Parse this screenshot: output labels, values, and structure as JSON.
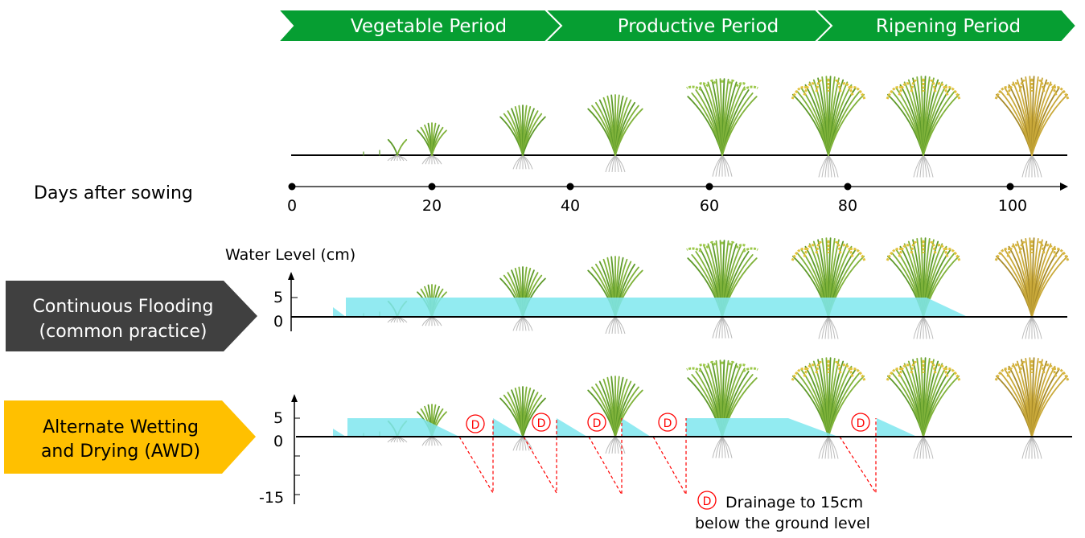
{
  "periods": [
    {
      "label": "Vegetable Period"
    },
    {
      "label": "Productive Period"
    },
    {
      "label": "Ripening Period"
    }
  ],
  "colors": {
    "period": "#069e32",
    "flooding_label": "#404040",
    "awd_label": "#ffc000",
    "water": "#7fe7ef",
    "drain": "#ff0000"
  },
  "timeline": {
    "label": "Days after sowing",
    "ticks": [
      "0",
      "20",
      "40",
      "60",
      "80",
      "100"
    ]
  },
  "water_axis": {
    "label": "Water Level (cm)"
  },
  "flooding": {
    "line1": "Continuous Flooding",
    "line2": "(common practice)",
    "ticks": [
      "5",
      "0"
    ]
  },
  "awd": {
    "line1": "Alternate Wetting",
    "line2": "and Drying (AWD)",
    "ticks": [
      "5",
      "0",
      "-15"
    ],
    "marker": "D"
  },
  "legend": {
    "marker": "D",
    "line1": "Drainage to 15cm",
    "line2": "below the ground level"
  },
  "plant_icons": [
    "seedling",
    "seedling",
    "seedling",
    "young-rice-plant",
    "tillering-rice-plant",
    "tillering-rice-plant",
    "flowering-rice-plant",
    "ripening-rice-plant",
    "ripening-rice-plant",
    "mature-rice-plant"
  ]
}
